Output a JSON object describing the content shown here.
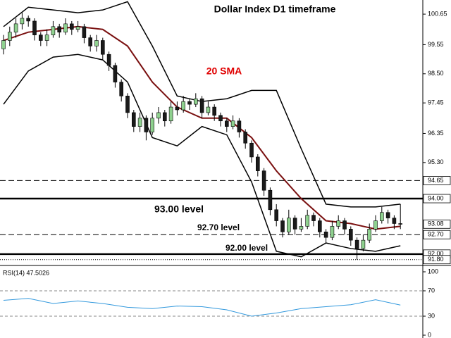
{
  "chart_data": [
    {
      "type": "candlestick",
      "title": "Dollar Index D1 timeframe",
      "annotations": [
        "20 SMA",
        "93.00 level",
        "92.70 level",
        "92.00 level"
      ],
      "up_color": "#8fd18f",
      "down_color": "#1a1a1a",
      "ohlc": [
        [
          99.4,
          99.9,
          99.2,
          99.7
        ],
        [
          99.7,
          100.2,
          99.5,
          100.0
        ],
        [
          100.0,
          100.5,
          99.8,
          100.3
        ],
        [
          100.3,
          100.7,
          100.1,
          100.5
        ],
        [
          100.5,
          100.6,
          100.2,
          100.4
        ],
        [
          100.4,
          100.5,
          99.7,
          99.9
        ],
        [
          99.9,
          100.0,
          99.5,
          99.7
        ],
        [
          99.7,
          100.1,
          99.5,
          99.9
        ],
        [
          99.9,
          100.4,
          99.8,
          100.2
        ],
        [
          100.2,
          100.3,
          99.8,
          100.0
        ],
        [
          100.0,
          100.5,
          99.9,
          100.3
        ],
        [
          100.3,
          100.4,
          99.9,
          100.1
        ],
        [
          100.1,
          100.4,
          100.0,
          100.2
        ],
        [
          100.2,
          100.3,
          99.6,
          99.8
        ],
        [
          99.8,
          99.9,
          99.3,
          99.5
        ],
        [
          99.5,
          99.9,
          99.3,
          99.7
        ],
        [
          99.7,
          99.8,
          99.0,
          99.2
        ],
        [
          99.2,
          99.3,
          98.6,
          98.8
        ],
        [
          98.8,
          98.9,
          98.0,
          98.2
        ],
        [
          98.2,
          98.3,
          97.5,
          97.7
        ],
        [
          97.7,
          97.8,
          96.9,
          97.1
        ],
        [
          97.1,
          97.2,
          96.4,
          96.6
        ],
        [
          96.6,
          97.1,
          96.4,
          96.9
        ],
        [
          96.9,
          97.0,
          96.1,
          96.4
        ],
        [
          96.4,
          97.1,
          96.3,
          96.9
        ],
        [
          96.9,
          97.3,
          96.7,
          97.1
        ],
        [
          97.1,
          97.2,
          96.6,
          96.8
        ],
        [
          96.8,
          97.5,
          96.7,
          97.3
        ],
        [
          97.3,
          97.5,
          97.0,
          97.2
        ],
        [
          97.2,
          97.7,
          97.1,
          97.5
        ],
        [
          97.5,
          97.6,
          97.2,
          97.4
        ],
        [
          97.4,
          97.8,
          97.3,
          97.6
        ],
        [
          97.6,
          97.7,
          96.9,
          97.1
        ],
        [
          97.1,
          97.5,
          97.0,
          97.3
        ],
        [
          97.3,
          97.4,
          96.8,
          97.0
        ],
        [
          97.0,
          97.1,
          96.6,
          96.8
        ],
        [
          96.8,
          96.9,
          96.4,
          96.6
        ],
        [
          96.6,
          97.0,
          96.5,
          96.8
        ],
        [
          96.8,
          96.9,
          96.2,
          96.4
        ],
        [
          96.4,
          96.5,
          95.8,
          96.0
        ],
        [
          96.0,
          96.1,
          95.3,
          95.5
        ],
        [
          95.5,
          95.6,
          94.8,
          95.0
        ],
        [
          95.0,
          95.1,
          94.1,
          94.3
        ],
        [
          94.3,
          94.4,
          93.4,
          93.6
        ],
        [
          93.6,
          93.8,
          93.0,
          93.2
        ],
        [
          93.2,
          93.3,
          92.6,
          92.8
        ],
        [
          92.8,
          93.6,
          92.7,
          93.3
        ],
        [
          93.3,
          93.4,
          92.7,
          92.9
        ],
        [
          92.9,
          93.3,
          92.8,
          93.0
        ],
        [
          93.0,
          93.6,
          92.9,
          93.4
        ],
        [
          93.4,
          93.5,
          93.0,
          93.2
        ],
        [
          93.2,
          93.3,
          92.6,
          92.8
        ],
        [
          92.8,
          92.9,
          92.4,
          92.6
        ],
        [
          92.6,
          93.2,
          92.5,
          93.0
        ],
        [
          93.0,
          93.4,
          92.9,
          93.2
        ],
        [
          93.2,
          93.3,
          92.7,
          92.9
        ],
        [
          92.9,
          93.0,
          92.3,
          92.5
        ],
        [
          92.5,
          92.6,
          91.8,
          92.2
        ],
        [
          92.2,
          92.7,
          92.1,
          92.5
        ],
        [
          92.5,
          93.1,
          92.4,
          92.9
        ],
        [
          92.9,
          93.4,
          92.8,
          93.2
        ],
        [
          93.2,
          93.7,
          93.1,
          93.5
        ],
        [
          93.5,
          93.6,
          93.1,
          93.3
        ],
        [
          93.3,
          93.4,
          92.9,
          93.1
        ],
        [
          93.1,
          93.8,
          92.9,
          93.08
        ]
      ],
      "series": [
        {
          "name": "Upper band",
          "color": "#000000",
          "x": [
            0,
            4,
            8,
            12,
            16,
            20,
            24,
            28,
            32,
            36,
            40,
            44,
            48,
            52,
            56,
            60,
            64
          ],
          "values": [
            100.2,
            100.9,
            100.8,
            100.7,
            100.8,
            101.1,
            99.5,
            97.7,
            97.5,
            97.6,
            97.9,
            97.9,
            95.8,
            93.8,
            93.7,
            93.7,
            93.8
          ]
        },
        {
          "name": "Lower band",
          "color": "#000000",
          "x": [
            0,
            4,
            8,
            12,
            16,
            20,
            24,
            28,
            32,
            36,
            40,
            44,
            48,
            52,
            56,
            60,
            64
          ],
          "values": [
            97.4,
            98.6,
            99.1,
            99.2,
            99.0,
            98.2,
            96.2,
            95.9,
            96.6,
            96.3,
            94.6,
            92.1,
            91.9,
            92.4,
            92.2,
            92.1,
            92.3
          ]
        },
        {
          "name": "20 SMA",
          "color": "#7a1010",
          "x": [
            0,
            4,
            8,
            12,
            16,
            20,
            24,
            28,
            32,
            36,
            40,
            44,
            48,
            52,
            56,
            60,
            64
          ],
          "values": [
            99.7,
            100.0,
            100.1,
            100.2,
            100.1,
            99.5,
            98.2,
            97.3,
            96.9,
            96.9,
            96.2,
            95.0,
            94.0,
            93.2,
            93.1,
            92.9,
            93.0
          ]
        }
      ],
      "ylim": [
        91.64,
        101.16
      ],
      "yticks": [
        100.65,
        99.55,
        {
          "value": 98.5,
          "label": "98.50"
        },
        97.45,
        96.35,
        {
          "value": 95.3,
          "label": "95.30"
        }
      ],
      "levels": [
        {
          "value": 94.65,
          "label": "94.65",
          "line": "dashed"
        },
        {
          "value": 94.0,
          "label": "94.00",
          "line": "solid"
        },
        {
          "value": 93.08,
          "label": "93.08",
          "line": "none"
        },
        {
          "value": 92.7,
          "label": "92.70",
          "line": "dashed"
        },
        {
          "value": 92.0,
          "label": "92.00",
          "line": "solid"
        },
        {
          "value": 91.8,
          "label": "91.80",
          "line": "dotted"
        }
      ]
    },
    {
      "type": "line",
      "title": "RSI(14) 47.5026",
      "series": [
        {
          "name": "RSI",
          "color": "#3399dd",
          "x": [
            0,
            4,
            8,
            12,
            16,
            20,
            24,
            28,
            32,
            36,
            40,
            44,
            48,
            52,
            56,
            60,
            64
          ],
          "values": [
            55,
            58,
            50,
            54,
            50,
            44,
            42,
            46,
            45,
            40,
            30,
            35,
            42,
            45,
            48,
            56,
            47.5
          ]
        }
      ],
      "ylim": [
        0,
        100
      ],
      "yticks": [
        100,
        70,
        30,
        0
      ],
      "dashed_ticks": [
        70,
        30
      ]
    }
  ]
}
